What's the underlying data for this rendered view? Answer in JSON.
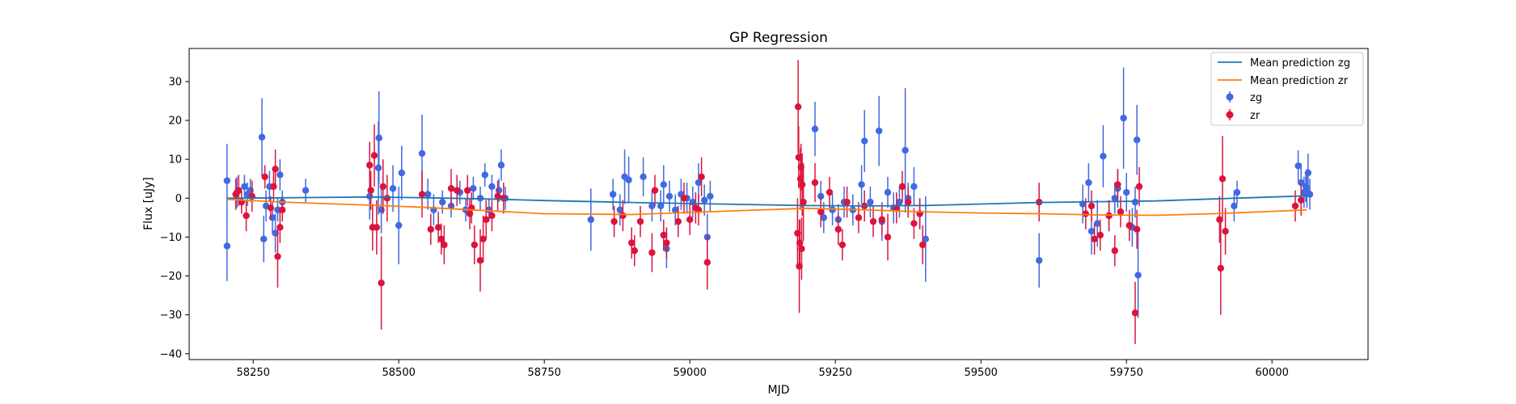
{
  "chart_data": {
    "type": "scatter",
    "title": "GP Regression",
    "xlabel": "MJD",
    "ylabel": "Flux [uJy]",
    "xlim": [
      58140,
      60165
    ],
    "ylim": [
      -41.5,
      38.5
    ],
    "xticks": [
      58250,
      58500,
      58750,
      59000,
      59250,
      59500,
      59750,
      60000
    ],
    "yticks": [
      -40,
      -30,
      -20,
      -10,
      0,
      10,
      20,
      30
    ],
    "grid": false,
    "legend_position": "top-right",
    "lines": [
      {
        "name": "Mean prediction zg",
        "color": "#1f77b4",
        "x": [
          58205,
          58300,
          58450,
          58550,
          58650,
          58750,
          58900,
          59050,
          59200,
          59300,
          59400,
          59500,
          59600,
          59700,
          59800,
          59900,
          60000,
          60060
        ],
        "y": [
          0,
          0.1,
          0.3,
          0.1,
          -0.2,
          -0.6,
          -1.1,
          -1.5,
          -1.9,
          -2.0,
          -1.9,
          -1.5,
          -1.1,
          -0.9,
          -0.7,
          -0.2,
          0.3,
          0.6
        ]
      },
      {
        "name": "Mean prediction zr",
        "color": "#ff7f0e",
        "x": [
          58205,
          58300,
          58450,
          58550,
          58650,
          58750,
          58900,
          59050,
          59200,
          59300,
          59400,
          59500,
          59600,
          59700,
          59800,
          59900,
          60000,
          60060
        ],
        "y": [
          -0.3,
          -1.0,
          -1.8,
          -2.4,
          -3.2,
          -4.0,
          -4.2,
          -3.4,
          -2.6,
          -3.0,
          -3.5,
          -3.8,
          -4.0,
          -4.3,
          -4.4,
          -4.0,
          -3.4,
          -3.0
        ]
      }
    ],
    "series": [
      {
        "name": "zg",
        "color": "#4169e1",
        "points": [
          [
            58205,
            4.5,
            9.5
          ],
          [
            58205,
            -12.3,
            9
          ],
          [
            58222,
            1.5,
            4
          ],
          [
            58235,
            3.0,
            3
          ],
          [
            58240,
            1.0,
            3
          ],
          [
            58245,
            2.0,
            3
          ],
          [
            58265,
            15.7,
            10
          ],
          [
            58268,
            -10.5,
            6
          ],
          [
            58272,
            -2.0,
            4
          ],
          [
            58278,
            3.0,
            4
          ],
          [
            58283,
            -5.0,
            4
          ],
          [
            58288,
            -9.0,
            5
          ],
          [
            58292,
            -3.0,
            3
          ],
          [
            58296,
            6.0,
            4
          ],
          [
            58300,
            -1.0,
            3
          ],
          [
            58340,
            2.0,
            3
          ],
          [
            58450,
            0.5,
            6
          ],
          [
            58465,
            7.8,
            12
          ],
          [
            58466,
            15.5,
            12
          ],
          [
            58470,
            -3.0,
            6
          ],
          [
            58490,
            2.5,
            6
          ],
          [
            58500,
            -7.0,
            10
          ],
          [
            58505,
            6.5,
            7
          ],
          [
            58540,
            11.5,
            10
          ],
          [
            58550,
            1.0,
            4
          ],
          [
            58560,
            -3.0,
            4
          ],
          [
            58575,
            -1.0,
            3
          ],
          [
            58590,
            -2.0,
            3
          ],
          [
            58605,
            1.5,
            3
          ],
          [
            58615,
            -3.0,
            3
          ],
          [
            58628,
            2.5,
            3
          ],
          [
            58640,
            0.0,
            3
          ],
          [
            58648,
            6.0,
            3
          ],
          [
            58655,
            -3.0,
            3
          ],
          [
            58660,
            3.0,
            3
          ],
          [
            58672,
            2.0,
            3
          ],
          [
            58676,
            8.5,
            4
          ],
          [
            58683,
            0.0,
            3
          ],
          [
            58830,
            -5.5,
            8
          ],
          [
            58868,
            1.0,
            4
          ],
          [
            58880,
            -3.0,
            4
          ],
          [
            58888,
            5.5,
            7
          ],
          [
            58895,
            4.7,
            6
          ],
          [
            58920,
            5.5,
            5
          ],
          [
            58935,
            -2.0,
            4
          ],
          [
            58950,
            -2.0,
            4
          ],
          [
            58955,
            3.5,
            5
          ],
          [
            58960,
            -13.0,
            5
          ],
          [
            58965,
            0.5,
            4
          ],
          [
            58975,
            -3.0,
            4
          ],
          [
            58985,
            1.0,
            4
          ],
          [
            58995,
            0.0,
            4
          ],
          [
            59005,
            -1.0,
            4
          ],
          [
            59015,
            4.0,
            5
          ],
          [
            59025,
            -0.5,
            4
          ],
          [
            59030,
            -10.0,
            6
          ],
          [
            59035,
            0.5,
            4
          ],
          [
            59215,
            17.8,
            7
          ],
          [
            59225,
            0.5,
            4
          ],
          [
            59230,
            -5.0,
            4
          ],
          [
            59245,
            -3.0,
            4
          ],
          [
            59255,
            -5.5,
            4
          ],
          [
            59265,
            -1.0,
            4
          ],
          [
            59280,
            -3.0,
            4
          ],
          [
            59295,
            3.5,
            5
          ],
          [
            59300,
            14.7,
            8
          ],
          [
            59310,
            -1.0,
            4
          ],
          [
            59325,
            17.3,
            9
          ],
          [
            59330,
            -6.0,
            5
          ],
          [
            59340,
            1.5,
            4
          ],
          [
            59350,
            -2.5,
            4
          ],
          [
            59360,
            -1.0,
            4
          ],
          [
            59370,
            12.3,
            16
          ],
          [
            59375,
            0.0,
            4
          ],
          [
            59385,
            3.0,
            5
          ],
          [
            59395,
            -4.0,
            4
          ],
          [
            59405,
            -10.5,
            11
          ],
          [
            59600,
            -16.0,
            7
          ],
          [
            59675,
            -1.5,
            5
          ],
          [
            59685,
            4.0,
            5
          ],
          [
            59690,
            -8.5,
            6
          ],
          [
            59700,
            -6.5,
            6
          ],
          [
            59710,
            10.8,
            8
          ],
          [
            59720,
            -4.5,
            4
          ],
          [
            59730,
            0.0,
            4
          ],
          [
            59735,
            2.5,
            5
          ],
          [
            59745,
            20.6,
            13
          ],
          [
            59750,
            1.5,
            5
          ],
          [
            59760,
            -7.5,
            5
          ],
          [
            59765,
            -1.0,
            4
          ],
          [
            59768,
            15.0,
            9
          ],
          [
            59770,
            -19.8,
            11
          ],
          [
            59935,
            -2.0,
            4
          ],
          [
            59940,
            1.5,
            3
          ],
          [
            60045,
            8.3,
            4
          ],
          [
            60050,
            4.0,
            5
          ],
          [
            60055,
            1.5,
            4
          ],
          [
            60058,
            3.0,
            4
          ],
          [
            60060,
            2.5,
            5
          ],
          [
            60062,
            6.5,
            5
          ],
          [
            60065,
            1.0,
            4
          ]
        ]
      },
      {
        "name": "zr",
        "color": "#dc143c",
        "points": [
          [
            58220,
            1.0,
            4
          ],
          [
            58225,
            2.0,
            4
          ],
          [
            58230,
            -1.0,
            3
          ],
          [
            58238,
            -4.5,
            4
          ],
          [
            58248,
            0.5,
            4
          ],
          [
            58270,
            5.5,
            3
          ],
          [
            58280,
            -2.5,
            3
          ],
          [
            58285,
            3.0,
            4
          ],
          [
            58288,
            7.5,
            5
          ],
          [
            58292,
            -15.0,
            8
          ],
          [
            58296,
            -7.5,
            4
          ],
          [
            58300,
            -3.0,
            3
          ],
          [
            58450,
            8.5,
            6
          ],
          [
            58452,
            2.0,
            5
          ],
          [
            58455,
            -7.5,
            6
          ],
          [
            58458,
            11.0,
            8
          ],
          [
            58462,
            -7.5,
            7
          ],
          [
            58470,
            -21.8,
            12
          ],
          [
            58473,
            3.0,
            7
          ],
          [
            58480,
            0.0,
            6
          ],
          [
            58540,
            1.0,
            6
          ],
          [
            58555,
            -8.0,
            4
          ],
          [
            58568,
            -7.5,
            4
          ],
          [
            58573,
            -10.5,
            4
          ],
          [
            58578,
            -12.0,
            5
          ],
          [
            58590,
            2.5,
            5
          ],
          [
            58600,
            2.0,
            4
          ],
          [
            58618,
            2.0,
            4
          ],
          [
            58622,
            -4.0,
            4
          ],
          [
            58625,
            -2.5,
            4
          ],
          [
            58630,
            -12.0,
            5
          ],
          [
            58640,
            -16.0,
            8
          ],
          [
            58645,
            -10.5,
            6
          ],
          [
            58650,
            -5.5,
            5
          ],
          [
            58660,
            -4.5,
            4
          ],
          [
            58670,
            0.5,
            4
          ],
          [
            58680,
            0.0,
            4
          ],
          [
            58870,
            -6.0,
            4
          ],
          [
            58885,
            -4.5,
            4
          ],
          [
            58900,
            -11.5,
            4
          ],
          [
            58905,
            -13.5,
            4
          ],
          [
            58915,
            -6.0,
            4
          ],
          [
            58935,
            -14.0,
            5
          ],
          [
            58940,
            2.0,
            4
          ],
          [
            58955,
            -9.5,
            4
          ],
          [
            58960,
            -11.5,
            4
          ],
          [
            58980,
            -6.0,
            4
          ],
          [
            58990,
            0.0,
            4
          ],
          [
            59000,
            -5.5,
            4
          ],
          [
            59010,
            -2.5,
            4
          ],
          [
            59015,
            -3.0,
            4
          ],
          [
            59020,
            5.5,
            5
          ],
          [
            59030,
            -16.5,
            7
          ],
          [
            59185,
            -9.0,
            9
          ],
          [
            59186,
            23.5,
            12
          ],
          [
            59187,
            10.5,
            8
          ],
          [
            59188,
            -17.5,
            12
          ],
          [
            59189,
            -11.5,
            6
          ],
          [
            59190,
            5.0,
            8
          ],
          [
            59191,
            8.0,
            6
          ],
          [
            59192,
            -13.0,
            8
          ],
          [
            59193,
            3.5,
            8
          ],
          [
            59195,
            -1.0,
            10
          ],
          [
            59215,
            4.0,
            5
          ],
          [
            59225,
            -3.5,
            4
          ],
          [
            59240,
            1.5,
            4
          ],
          [
            59255,
            -8.0,
            4
          ],
          [
            59262,
            -12.0,
            4
          ],
          [
            59270,
            -1.0,
            4
          ],
          [
            59290,
            -5.0,
            4
          ],
          [
            59300,
            -2.0,
            4
          ],
          [
            59315,
            -6.0,
            4
          ],
          [
            59330,
            -5.5,
            4
          ],
          [
            59340,
            -10.0,
            6
          ],
          [
            59355,
            -2.5,
            4
          ],
          [
            59365,
            3.0,
            4
          ],
          [
            59375,
            -1.0,
            4
          ],
          [
            59385,
            -6.5,
            4
          ],
          [
            59395,
            -4.0,
            4
          ],
          [
            59400,
            -12.0,
            5
          ],
          [
            59600,
            -1.0,
            5
          ],
          [
            59680,
            -4.0,
            4
          ],
          [
            59690,
            -2.0,
            4
          ],
          [
            59695,
            -10.5,
            4
          ],
          [
            59705,
            -9.5,
            4
          ],
          [
            59720,
            -4.5,
            4
          ],
          [
            59730,
            -13.5,
            4
          ],
          [
            59735,
            3.5,
            4
          ],
          [
            59740,
            -3.5,
            4
          ],
          [
            59755,
            -7.0,
            4
          ],
          [
            59765,
            -29.5,
            8
          ],
          [
            59768,
            -8.0,
            5
          ],
          [
            59772,
            3.0,
            5
          ],
          [
            59910,
            -5.5,
            6
          ],
          [
            59912,
            -18.0,
            12
          ],
          [
            59915,
            5.0,
            11
          ],
          [
            59920,
            -8.5,
            6
          ],
          [
            60040,
            -2.0,
            4
          ],
          [
            60050,
            -0.5,
            4
          ]
        ]
      }
    ]
  }
}
